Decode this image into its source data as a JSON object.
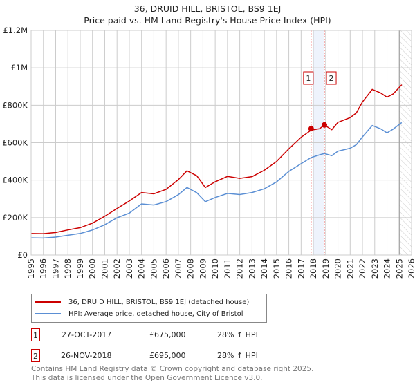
{
  "title": {
    "line1": "36, DRUID HILL, BRISTOL, BS9 1EJ",
    "line2": "Price paid vs. HM Land Registry's House Price Index (HPI)"
  },
  "chart_data": {
    "type": "line",
    "title": "36, DRUID HILL, BRISTOL, BS9 1EJ — Price paid vs. HM Land Registry's House Price Index (HPI)",
    "xlim": [
      1995,
      2026
    ],
    "ylim": [
      0,
      1200000
    ],
    "grid": true,
    "xticks": [
      "1995",
      "1996",
      "1997",
      "1998",
      "1999",
      "2000",
      "2001",
      "2002",
      "2003",
      "2004",
      "2005",
      "2006",
      "2007",
      "2008",
      "2009",
      "2010",
      "2011",
      "2012",
      "2013",
      "2014",
      "2015",
      "2016",
      "2017",
      "2018",
      "2019",
      "2020",
      "2021",
      "2022",
      "2023",
      "2024",
      "2025",
      "2026"
    ],
    "yticks": [
      {
        "v": 0,
        "label": "£0"
      },
      {
        "v": 200000,
        "label": "£200K"
      },
      {
        "v": 400000,
        "label": "£400K"
      },
      {
        "v": 600000,
        "label": "£600K"
      },
      {
        "v": 800000,
        "label": "£800K"
      },
      {
        "v": 1000000,
        "label": "£1M"
      },
      {
        "v": 1200000,
        "label": "£1.2M"
      }
    ],
    "x": [
      1995,
      1996,
      1997,
      1998,
      1999,
      2000,
      2001,
      2002,
      2003,
      2004,
      2005,
      2006,
      2007,
      2007.7,
      2008.5,
      2009.2,
      2010,
      2011,
      2012,
      2013,
      2014,
      2015,
      2016,
      2017,
      2017.82,
      2018.5,
      2018.9,
      2019.5,
      2020,
      2021,
      2021.5,
      2022,
      2022.8,
      2023.5,
      2024,
      2024.5,
      2025.2
    ],
    "series": [
      {
        "name": "36, DRUID HILL, BRISTOL, BS9 1EJ (detached house)",
        "color": "#cc0000",
        "values": [
          115000,
          113000,
          122000,
          133000,
          146000,
          172000,
          205000,
          250000,
          290000,
          330000,
          330000,
          350000,
          400000,
          455000,
          420000,
          360000,
          395000,
          415000,
          412000,
          420000,
          448000,
          505000,
          565000,
          625000,
          675000,
          668000,
          695000,
          675000,
          700000,
          740000,
          760000,
          810000,
          895000,
          860000,
          840000,
          870000,
          900000
        ]
      },
      {
        "name": "HPI: Average price, detached house, City of Bristol",
        "color": "#5b8fd4",
        "values": [
          92000,
          90000,
          97000,
          105000,
          115000,
          135000,
          160000,
          200000,
          225000,
          270000,
          270000,
          285000,
          320000,
          365000,
          330000,
          285000,
          310000,
          325000,
          325000,
          335000,
          350000,
          395000,
          445000,
          485000,
          527000,
          530000,
          543000,
          535000,
          548000,
          575000,
          590000,
          625000,
          700000,
          670000,
          650000,
          680000,
          700000
        ]
      }
    ],
    "sales": [
      {
        "id": "1",
        "x": 2017.82,
        "value": 675000
      },
      {
        "id": "2",
        "x": 2018.9,
        "value": 695000
      }
    ],
    "shaded_band": [
      2018.0,
      2018.9
    ],
    "hatched_from": 2025.0
  },
  "legend": {
    "red": "36, DRUID HILL, BRISTOL, BS9 1EJ (detached house)",
    "blue": "HPI: Average price, detached house, City of Bristol"
  },
  "transactions": [
    {
      "id": "1",
      "date": "27-OCT-2017",
      "price": "£675,000",
      "hpi": "28% ↑ HPI"
    },
    {
      "id": "2",
      "date": "26-NOV-2018",
      "price": "£695,000",
      "hpi": "28% ↑ HPI"
    }
  ],
  "footer": {
    "line1": "Contains HM Land Registry data © Crown copyright and database right 2025.",
    "line2": "This data is licensed under the Open Government Licence v3.0."
  }
}
